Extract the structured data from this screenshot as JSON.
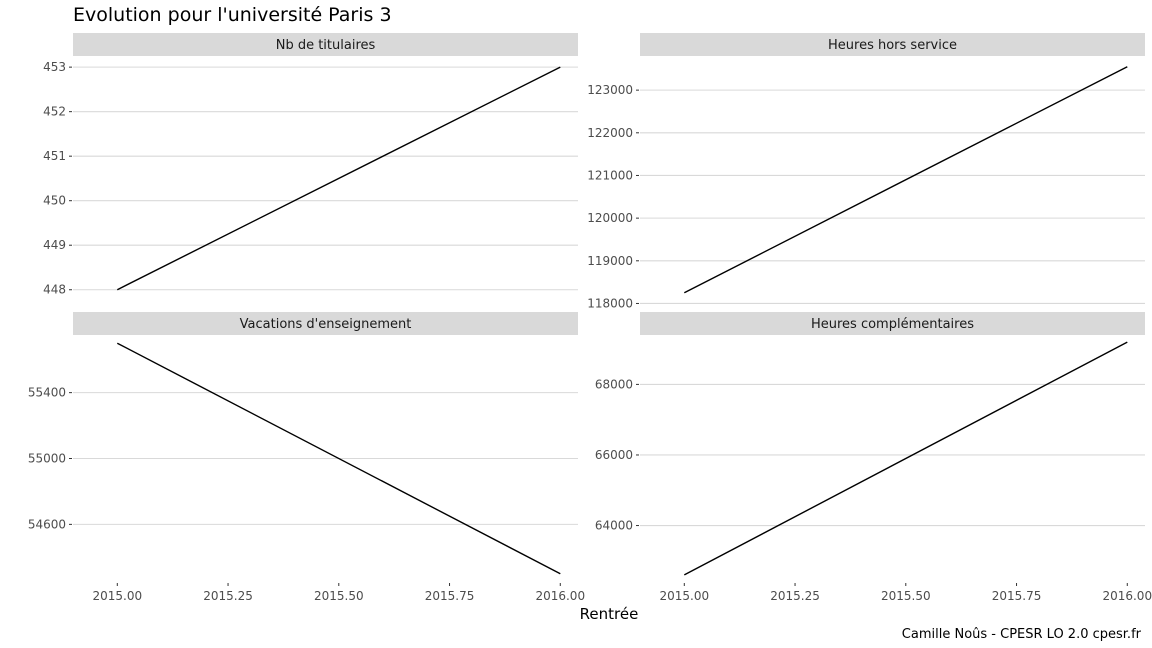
{
  "chart_data": {
    "type": "line",
    "title": "Evolution pour l'université Paris 3",
    "xlabel": "Rentrée",
    "caption": "Camille Noûs - CPESR LO 2.0 cpesr.fr",
    "x_ticks": [
      "2015.00",
      "2015.25",
      "2015.50",
      "2015.75",
      "2016.00"
    ],
    "xlim": [
      2014.9,
      2016.04
    ],
    "grid": true,
    "colors": {
      "strip": "#d9d9d9",
      "grid": "#d9d9d9",
      "line": "#000000",
      "tick_text": "#4d4d4d"
    },
    "panels": [
      {
        "strip": "Nb de titulaires",
        "x": [
          2015,
          2016
        ],
        "y": [
          448,
          453
        ],
        "ylim": [
          447.5,
          453.25
        ],
        "y_ticks": [
          448,
          449,
          450,
          451,
          452,
          453
        ],
        "y_tick_labels": [
          "448",
          "449",
          "450",
          "451",
          "452",
          "453"
        ]
      },
      {
        "strip": "Heures hors service",
        "x": [
          2015,
          2016
        ],
        "y": [
          118250,
          123550
        ],
        "ylim": [
          117800,
          123800
        ],
        "y_ticks": [
          118000,
          119000,
          120000,
          121000,
          122000,
          123000
        ],
        "y_tick_labels": [
          "118000",
          "119000",
          "120000",
          "121000",
          "122000",
          "123000"
        ]
      },
      {
        "strip": "Vacations d'enseignement",
        "x": [
          2015,
          2016
        ],
        "y": [
          55700,
          54300
        ],
        "ylim": [
          54250,
          55750
        ],
        "y_ticks": [
          54600,
          55000,
          55400
        ],
        "y_tick_labels": [
          "54600",
          "55000",
          "55400"
        ]
      },
      {
        "strip": "Heures complémentaires",
        "x": [
          2015,
          2016
        ],
        "y": [
          62600,
          69200
        ],
        "ylim": [
          62400,
          69400
        ],
        "y_ticks": [
          64000,
          66000,
          68000
        ],
        "y_tick_labels": [
          "64000",
          "66000",
          "68000"
        ]
      }
    ]
  }
}
